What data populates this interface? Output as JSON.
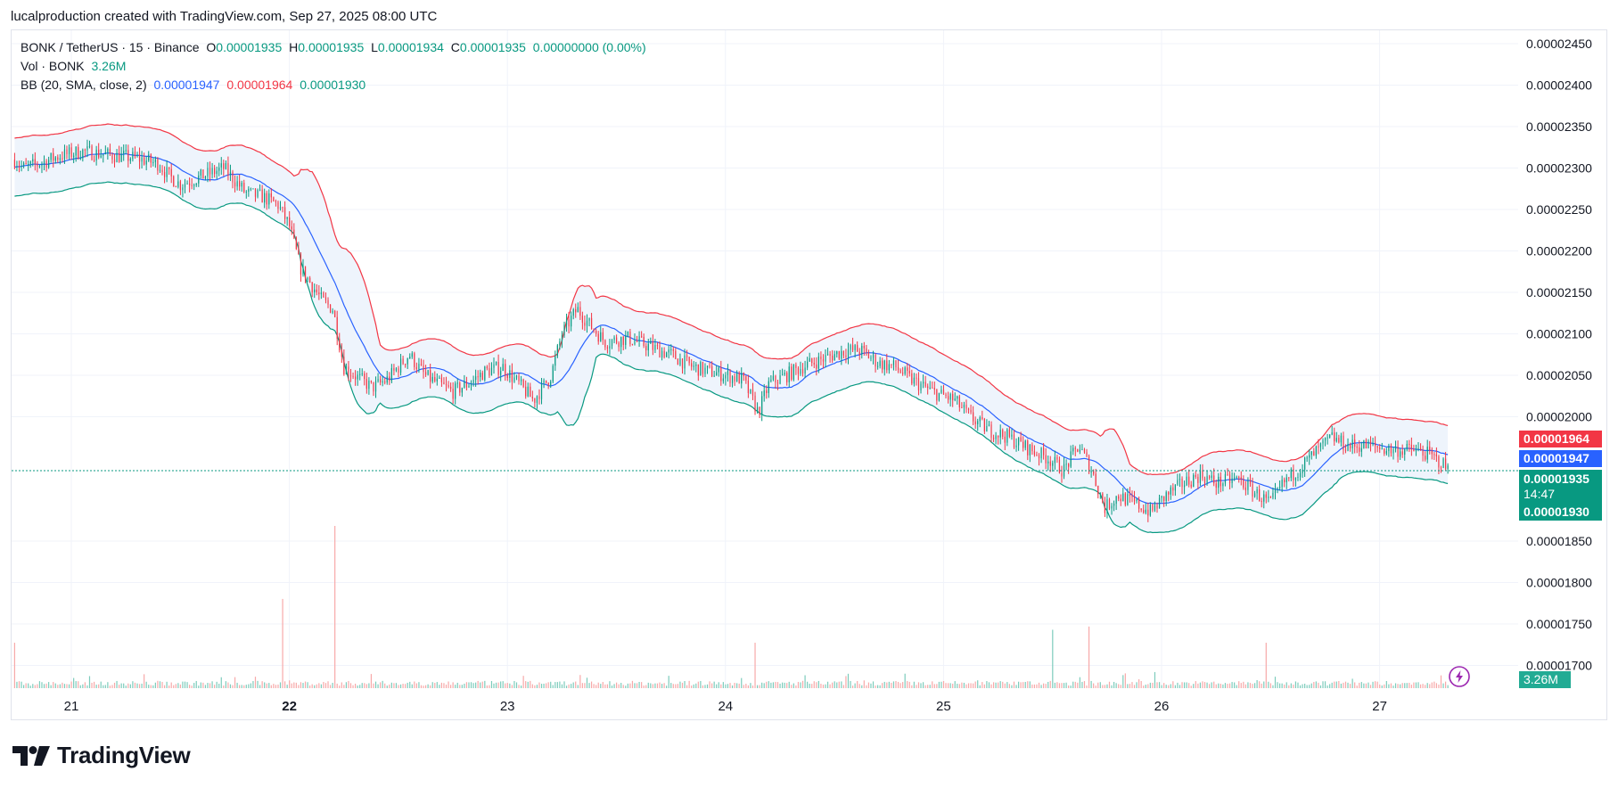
{
  "header": {
    "attribution": "lucalproduction created with TradingView.com, Sep 27, 2025 08:00 UTC"
  },
  "legend": {
    "symbol": "BONK / TetherUS · 15 · Binance",
    "o_label": "O",
    "o_value": "0.00001935",
    "h_label": "H",
    "h_value": "0.00001935",
    "l_label": "L",
    "l_value": "0.00001934",
    "c_label": "C",
    "c_value": "0.00001935",
    "change": "0.00000000 (0.00%)",
    "vol_label": "Vol · BONK",
    "vol_value": "3.26M",
    "bb_label": "BB (20, SMA, close, 2)",
    "bb_basis": "0.00001947",
    "bb_upper": "0.00001964",
    "bb_lower": "0.00001930"
  },
  "tags": {
    "upper": "0.00001964",
    "basis": "0.00001947",
    "last": "0.00001935",
    "countdown": "14:47",
    "lower": "0.00001930",
    "volume": "3.26M"
  },
  "branding": {
    "logo_text": "TradingView"
  },
  "colors": {
    "up": "#089981",
    "down": "#f23645",
    "basis": "#2962ff",
    "upper_band": "#f23645",
    "lower_band": "#089981",
    "band_fill": "#eef4fc"
  },
  "chart_data": {
    "type": "candlestick",
    "symbol": "BONK / TetherUS",
    "interval": "15",
    "exchange": "Binance",
    "y_ticks": [
      "0.00002450",
      "0.00002400",
      "0.00002350",
      "0.00002300",
      "0.00002250",
      "0.00002200",
      "0.00002150",
      "0.00002100",
      "0.00002050",
      "0.00002000",
      "0.00001850",
      "0.00001800",
      "0.00001750",
      "0.00001700"
    ],
    "x_ticks": [
      "21",
      "22",
      "23",
      "24",
      "25",
      "26",
      "27"
    ],
    "ylim": [
      1.68e-05,
      2.48e-05
    ],
    "xlim": [
      20.73,
      27.75
    ],
    "last_price": 1.935e-05,
    "price_path": [
      [
        20.74,
        2.31e-05
      ],
      [
        20.78,
        2.3e-05
      ],
      [
        20.85,
        2.305e-05
      ],
      [
        20.95,
        2.315e-05
      ],
      [
        21.05,
        2.32e-05
      ],
      [
        21.2,
        2.315e-05
      ],
      [
        21.3,
        2.312e-05
      ],
      [
        21.4,
        2.305e-05
      ],
      [
        21.45,
        2.29e-05
      ],
      [
        21.5,
        2.28e-05
      ],
      [
        21.6,
        2.29e-05
      ],
      [
        21.7,
        2.3e-05
      ],
      [
        21.75,
        2.285e-05
      ],
      [
        21.8,
        2.27e-05
      ],
      [
        21.88,
        2.265e-05
      ],
      [
        21.95,
        2.255e-05
      ],
      [
        22.0,
        2.23e-05
      ],
      [
        22.05,
        2.18e-05
      ],
      [
        22.1,
        2.16e-05
      ],
      [
        22.15,
        2.14e-05
      ],
      [
        22.2,
        2.13e-05
      ],
      [
        22.25,
        2.06e-05
      ],
      [
        22.3,
        2.05e-05
      ],
      [
        22.38,
        2.035e-05
      ],
      [
        22.45,
        2.045e-05
      ],
      [
        22.55,
        2.075e-05
      ],
      [
        22.62,
        2.05e-05
      ],
      [
        22.68,
        2.04e-05
      ],
      [
        22.75,
        2.03e-05
      ],
      [
        22.82,
        2.04e-05
      ],
      [
        22.9,
        2.055e-05
      ],
      [
        22.98,
        2.06e-05
      ],
      [
        23.05,
        2.04e-05
      ],
      [
        23.12,
        2.02e-05
      ],
      [
        23.2,
        2.05e-05
      ],
      [
        23.25,
        2.1e-05
      ],
      [
        23.32,
        2.13e-05
      ],
      [
        23.38,
        2.11e-05
      ],
      [
        23.45,
        2.09e-05
      ],
      [
        23.55,
        2.095e-05
      ],
      [
        23.65,
        2.085e-05
      ],
      [
        23.75,
        2.075e-05
      ],
      [
        23.85,
        2.06e-05
      ],
      [
        23.92,
        2.055e-05
      ],
      [
        24.0,
        2.05e-05
      ],
      [
        24.08,
        2.045e-05
      ],
      [
        24.15,
        2.005e-05
      ],
      [
        24.2,
        2.04e-05
      ],
      [
        24.28,
        2.05e-05
      ],
      [
        24.35,
        2.06e-05
      ],
      [
        24.45,
        2.07e-05
      ],
      [
        24.55,
        2.08e-05
      ],
      [
        24.62,
        2.08e-05
      ],
      [
        24.7,
        2.065e-05
      ],
      [
        24.78,
        2.06e-05
      ],
      [
        24.85,
        2.045e-05
      ],
      [
        24.95,
        2.03e-05
      ],
      [
        25.05,
        2.02e-05
      ],
      [
        25.12,
        2e-05
      ],
      [
        25.2,
        1.985e-05
      ],
      [
        25.3,
        1.975e-05
      ],
      [
        25.4,
        1.96e-05
      ],
      [
        25.48,
        1.95e-05
      ],
      [
        25.55,
        1.935e-05
      ],
      [
        25.62,
        1.965e-05
      ],
      [
        25.68,
        1.935e-05
      ],
      [
        25.74,
        1.89e-05
      ],
      [
        25.8,
        1.905e-05
      ],
      [
        25.88,
        1.895e-05
      ],
      [
        25.95,
        1.885e-05
      ],
      [
        26.02,
        1.905e-05
      ],
      [
        26.1,
        1.92e-05
      ],
      [
        26.18,
        1.93e-05
      ],
      [
        26.25,
        1.92e-05
      ],
      [
        26.35,
        1.925e-05
      ],
      [
        26.42,
        1.91e-05
      ],
      [
        26.5,
        1.895e-05
      ],
      [
        26.56,
        1.92e-05
      ],
      [
        26.62,
        1.935e-05
      ],
      [
        26.7,
        1.955e-05
      ],
      [
        26.78,
        1.975e-05
      ],
      [
        26.85,
        1.965e-05
      ],
      [
        26.95,
        1.965e-05
      ],
      [
        27.05,
        1.96e-05
      ],
      [
        27.15,
        1.96e-05
      ],
      [
        27.22,
        1.955e-05
      ],
      [
        27.28,
        1.945e-05
      ],
      [
        27.32,
        1.935e-05
      ]
    ],
    "volume_spikes": [
      [
        20.74,
        0.28
      ],
      [
        21.97,
        0.55
      ],
      [
        22.21,
        1.0
      ],
      [
        24.14,
        0.28
      ],
      [
        25.5,
        0.36
      ],
      [
        25.67,
        0.38
      ],
      [
        26.48,
        0.28
      ]
    ]
  }
}
